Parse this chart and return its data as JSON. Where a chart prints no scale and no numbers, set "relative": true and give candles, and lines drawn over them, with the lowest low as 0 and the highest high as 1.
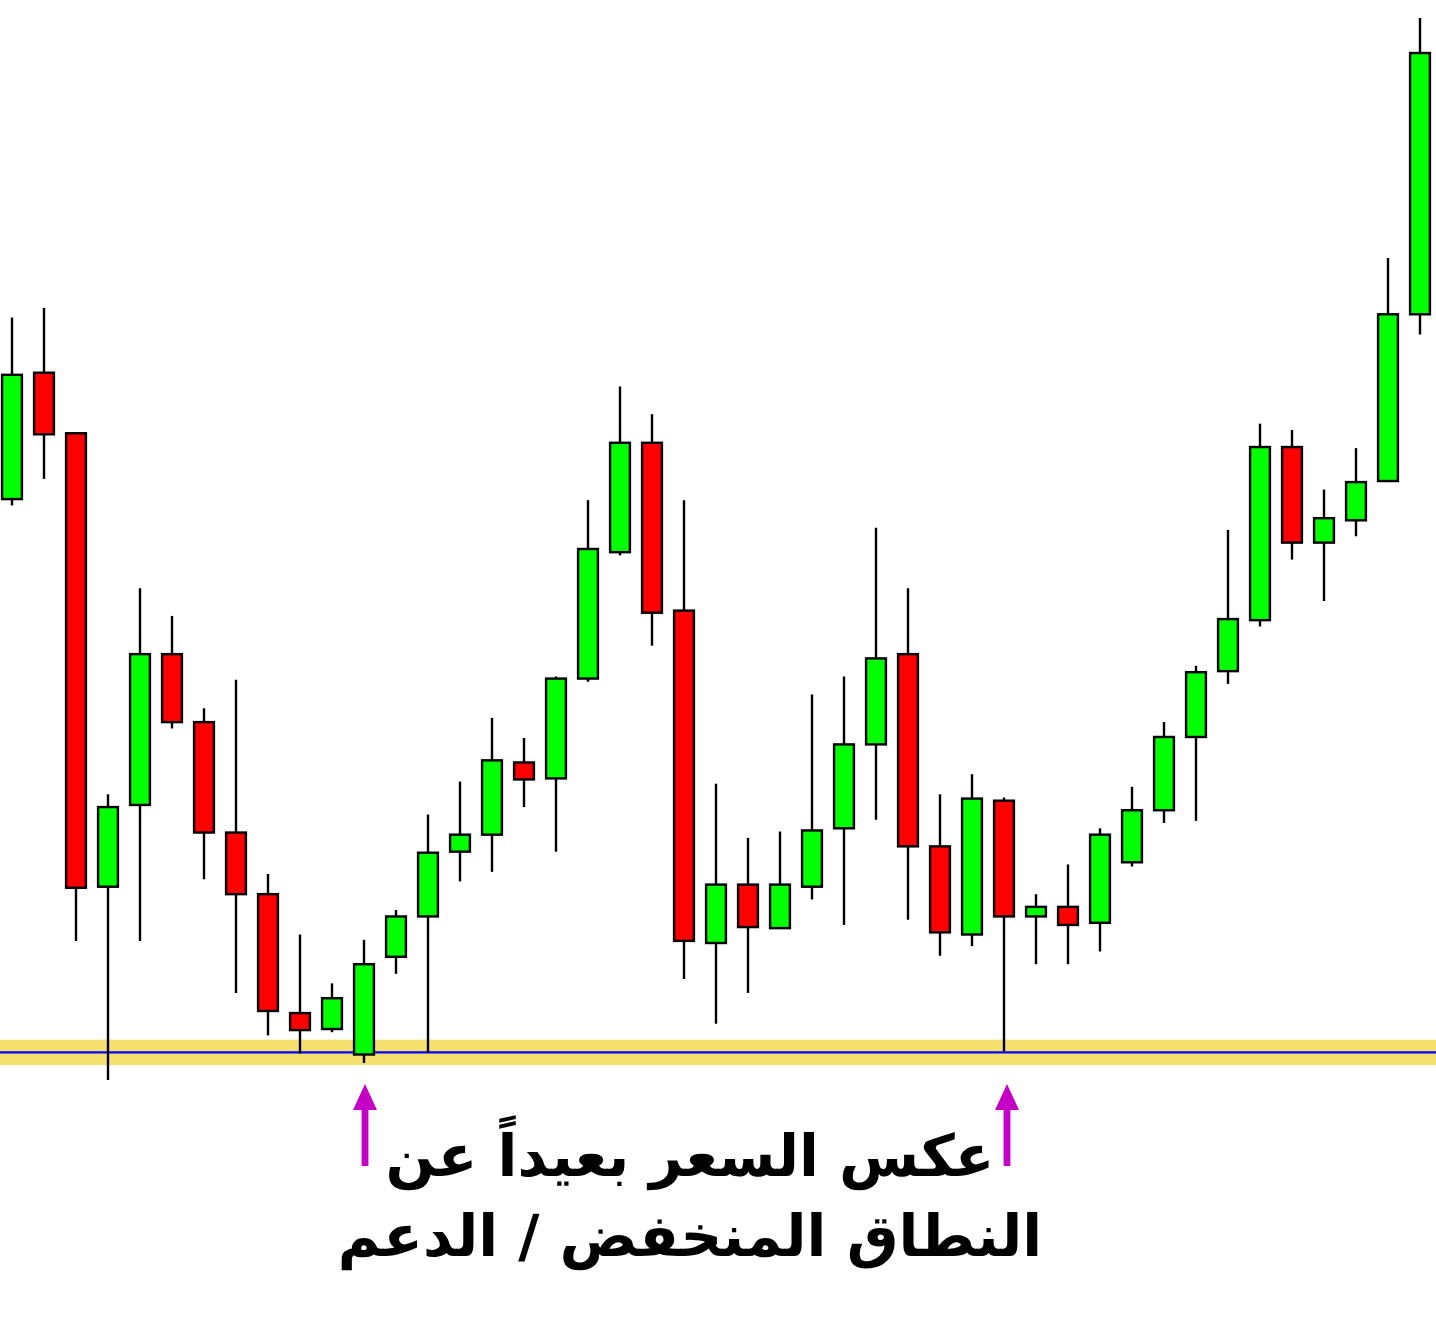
{
  "chart_data": {
    "type": "candlestick",
    "relative": true,
    "categories": [
      null,
      null,
      null,
      null,
      null,
      null,
      null,
      null,
      null,
      null,
      null,
      null,
      null,
      null,
      null,
      null,
      null,
      null,
      null,
      null,
      null,
      null,
      null,
      null,
      null,
      null,
      null,
      null,
      null,
      null,
      null,
      null,
      null,
      null,
      null,
      null,
      null,
      null,
      null,
      null,
      null,
      null,
      null,
      null,
      null
    ],
    "ohlc": [
      [
        0.547,
        0.718,
        0.541,
        0.664
      ],
      [
        0.666,
        0.727,
        0.566,
        0.608
      ],
      [
        0.609,
        0.609,
        0.131,
        0.181
      ],
      [
        0.182,
        0.269,
        0,
        0.257
      ],
      [
        0.259,
        0.463,
        0.131,
        0.401
      ],
      [
        0.401,
        0.437,
        0.331,
        0.337
      ],
      [
        0.337,
        0.35,
        0.189,
        0.233
      ],
      [
        0.233,
        0.377,
        0.082,
        0.175
      ],
      [
        0.175,
        0.194,
        0.042,
        0.065
      ],
      [
        0.063,
        0.137,
        0.025,
        0.047
      ],
      [
        0.048,
        0.091,
        0.045,
        0.077
      ],
      [
        0.024,
        0.132,
        0.016,
        0.109
      ],
      [
        0.116,
        0.16,
        0.1,
        0.154
      ],
      [
        0.154,
        0.25,
        0.026,
        0.214
      ],
      [
        0.215,
        0.281,
        0.187,
        0.231
      ],
      [
        0.231,
        0.341,
        0.196,
        0.301
      ],
      [
        0.299,
        0.322,
        0.257,
        0.283
      ],
      [
        0.284,
        0.38,
        0.215,
        0.378
      ],
      [
        0.378,
        0.546,
        0.375,
        0.5
      ],
      [
        0.497,
        0.653,
        0.494,
        0.6
      ],
      [
        0.6,
        0.627,
        0.409,
        0.44
      ],
      [
        0.442,
        0.546,
        0.095,
        0.131
      ],
      [
        0.129,
        0.279,
        0.053,
        0.184
      ],
      [
        0.184,
        0.228,
        0.082,
        0.144
      ],
      [
        0.143,
        0.234,
        0.143,
        0.184
      ],
      [
        0.182,
        0.363,
        0.17,
        0.235
      ],
      [
        0.237,
        0.38,
        0.146,
        0.316
      ],
      [
        0.316,
        0.52,
        0.245,
        0.397
      ],
      [
        0.401,
        0.463,
        0.151,
        0.22
      ],
      [
        0.22,
        0.269,
        0.117,
        0.139
      ],
      [
        0.137,
        0.288,
        0.126,
        0.265
      ],
      [
        0.263,
        0.266,
        0.027,
        0.154
      ],
      [
        0.154,
        0.175,
        0.109,
        0.163
      ],
      [
        0.163,
        0.203,
        0.109,
        0.146
      ],
      [
        0.148,
        0.237,
        0.121,
        0.231
      ],
      [
        0.205,
        0.276,
        0.201,
        0.254
      ],
      [
        0.254,
        0.337,
        0.242,
        0.323
      ],
      [
        0.323,
        0.39,
        0.244,
        0.384
      ],
      [
        0.385,
        0.518,
        0.373,
        0.434
      ],
      [
        0.433,
        0.618,
        0.427,
        0.596
      ],
      [
        0.596,
        0.612,
        0.49,
        0.506
      ],
      [
        0.506,
        0.556,
        0.451,
        0.529
      ],
      [
        0.527,
        0.595,
        0.512,
        0.563
      ],
      [
        0.564,
        0.774,
        0.563,
        0.721
      ],
      [
        0.721,
        1,
        0.702,
        0.967
      ]
    ],
    "colors": [
      "#00ff00",
      "#ff0000",
      "#ff0000",
      "#00ff00",
      "#00ff00",
      "#ff0000",
      "#ff0000",
      "#ff0000",
      "#ff0000",
      "#ff0000",
      "#00ff00",
      "#00ff00",
      "#00ff00",
      "#00ff00",
      "#00ff00",
      "#00ff00",
      "#ff0000",
      "#00ff00",
      "#00ff00",
      "#00ff00",
      "#ff0000",
      "#ff0000",
      "#00ff00",
      "#ff0000",
      "#00ff00",
      "#00ff00",
      "#00ff00",
      "#00ff00",
      "#ff0000",
      "#ff0000",
      "#00ff00",
      "#ff0000",
      "#00ff00",
      "#ff0000",
      "#00ff00",
      "#00ff00",
      "#00ff00",
      "#00ff00",
      "#00ff00",
      "#00ff00",
      "#ff0000",
      "#00ff00",
      "#00ff00",
      "#00ff00",
      "#00ff00"
    ],
    "bands": [
      {
        "axis": "y",
        "from": 0.014,
        "to": 0.038,
        "color": "#f5df6e"
      }
    ],
    "ref_lines": [
      {
        "axis": "y",
        "value": 0.026,
        "color": "#0000ff"
      }
    ],
    "annotations": [
      "عكس السعر بعيداً عن\nالنطاق المنخفض / الدعم"
    ]
  }
}
